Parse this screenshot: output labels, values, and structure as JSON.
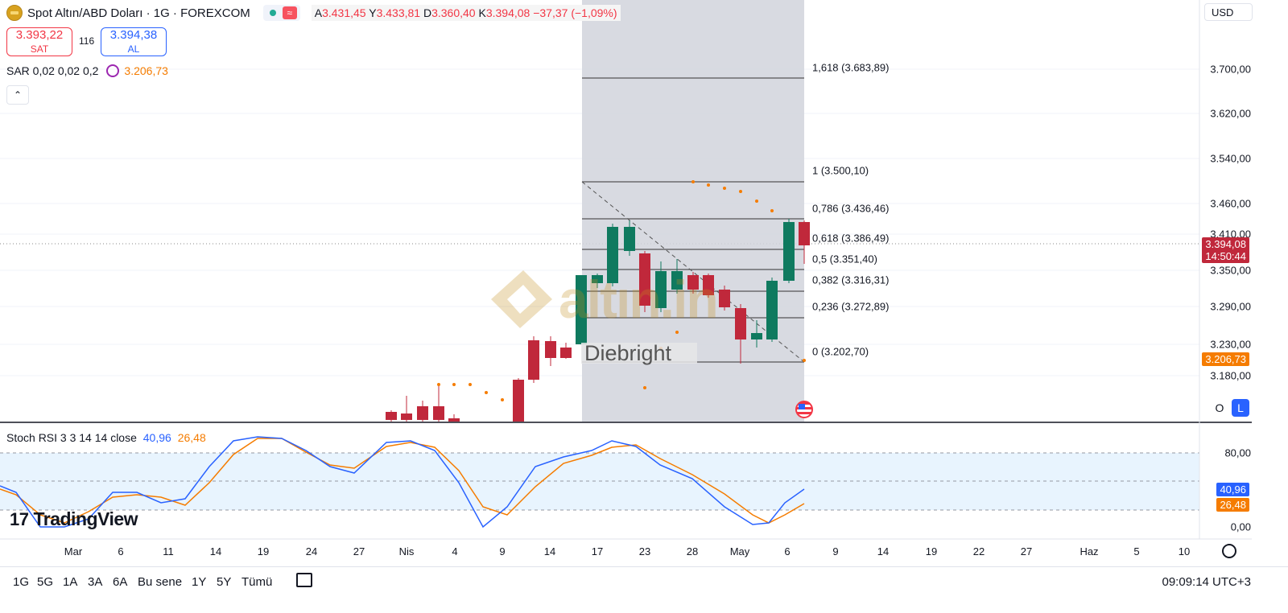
{
  "header": {
    "symbol_title": "Spot Altın/ABD Doları · 1G · FOREXCOM",
    "ohlc": [
      {
        "k": "A",
        "v": "3.431,45"
      },
      {
        "k": "Y",
        "v": "3.433,81"
      },
      {
        "k": "D",
        "v": "3.360,40"
      },
      {
        "k": "K",
        "v": "3.394,08"
      }
    ],
    "change": "−37,37 (−1,09%)"
  },
  "trade": {
    "sell_price": "3.393,22",
    "sell_label": "SAT",
    "spread": "116",
    "buy_price": "3.394,38",
    "buy_label": "AL"
  },
  "indicator_sar": {
    "label": "SAR 0,02 0,02 0,2",
    "value": "3.206,73"
  },
  "currency_button": "USD",
  "scale_buttons": {
    "log": "O",
    "lin": "L"
  },
  "price_axis": [
    "3.700,00",
    "3.620,00",
    "3.540,00",
    "3.460,00",
    "3.410,00",
    "3.350,00",
    "3.290,00",
    "3.230,00",
    "3.180,00"
  ],
  "price_tags": {
    "last_price": "3.394,08",
    "countdown": "14:50:44",
    "sar": "3.206,73"
  },
  "fib_levels": [
    {
      "label": "1,618 (3.683,89)"
    },
    {
      "label": "1 (3.500,10)"
    },
    {
      "label": "0,786 (3.436,46)"
    },
    {
      "label": "0,618 (3.386,49)"
    },
    {
      "label": "0,5 (3.351,40)"
    },
    {
      "label": "0,382 (3.316,31)"
    },
    {
      "label": "0,236 (3.272,89)"
    },
    {
      "label": "0 (3.202,70)"
    }
  ],
  "stoch": {
    "label": "Stoch RSI 3 3 14 14 close",
    "k_value": "40,96",
    "d_value": "26,48",
    "axis": [
      "80,00",
      "0,00"
    ],
    "tags": {
      "k": "40,96",
      "d": "26,48"
    }
  },
  "x_axis": [
    "Mar",
    "6",
    "11",
    "14",
    "19",
    "24",
    "27",
    "Nis",
    "4",
    "9",
    "14",
    "17",
    "23",
    "28",
    "May",
    "6",
    "9",
    "14",
    "19",
    "22",
    "27",
    "Haz",
    "5",
    "10"
  ],
  "timeframes": [
    "1G",
    "5G",
    "1A",
    "3A",
    "6A",
    "Bu sene",
    "1Y",
    "5Y",
    "Tümü"
  ],
  "clock": "09:09:14 UTC+3",
  "brand": "TradingView",
  "watermark": {
    "text": "altın.in",
    "overlay": "Diebright"
  },
  "colors": {
    "up": "#0f7a5f",
    "down": "#c0283b",
    "k_line": "#2962ff",
    "d_line": "#f57c00",
    "sar": "#f57c00",
    "fib_bg": "#d1d4dc"
  }
}
